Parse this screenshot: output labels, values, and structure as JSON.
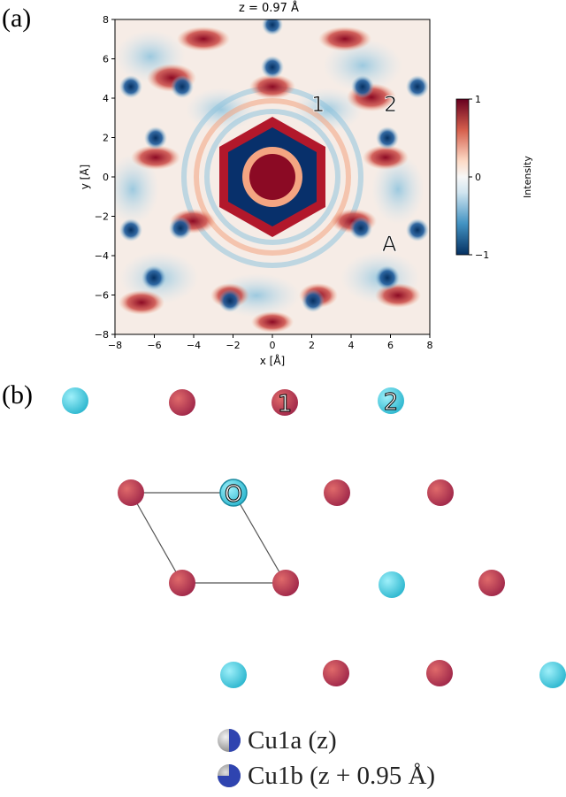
{
  "panel_a": {
    "label": "(a)",
    "title": "z = 0.97 Å",
    "xlabel": "x [Å]",
    "ylabel": "y [Å]",
    "xticks": [
      "−8",
      "−6",
      "−4",
      "−2",
      "0",
      "2",
      "4",
      "6",
      "8"
    ],
    "yticks": [
      "8",
      "6",
      "4",
      "2",
      "0",
      "−2",
      "−4",
      "−6",
      "−8"
    ],
    "annotations": [
      "1",
      "2",
      "A"
    ],
    "colorbar": {
      "label": "Intensity",
      "ticks": [
        "1",
        "0",
        "−1"
      ],
      "colors": {
        "high": "#67001f",
        "mid": "#f7f7f7",
        "low": "#053061"
      }
    }
  },
  "panel_b": {
    "label": "(b)",
    "site_labels": [
      "1",
      "2",
      "O"
    ],
    "colors": {
      "red_atom": "#b0304e",
      "cyan_atom": "#3ec8dc",
      "cell_line": "#555555"
    }
  },
  "legend": {
    "items": [
      {
        "label": "Cu1a (z)",
        "icon": "half-gray-blue-sphere-icon"
      },
      {
        "label": "Cu1b (z + 0.95 Å)",
        "icon": "half-blue-sphere-icon"
      }
    ]
  },
  "chart_data": {
    "type": "heatmap",
    "title": "z = 0.97 Å",
    "xlabel": "x [Å]",
    "ylabel": "y [Å]",
    "xlim": [
      -8,
      8
    ],
    "ylim": [
      -8,
      8
    ],
    "colorbar_label": "Intensity",
    "colorbar_range": [
      -1,
      1
    ],
    "colormap": "RdBu_r",
    "grid": false
  }
}
